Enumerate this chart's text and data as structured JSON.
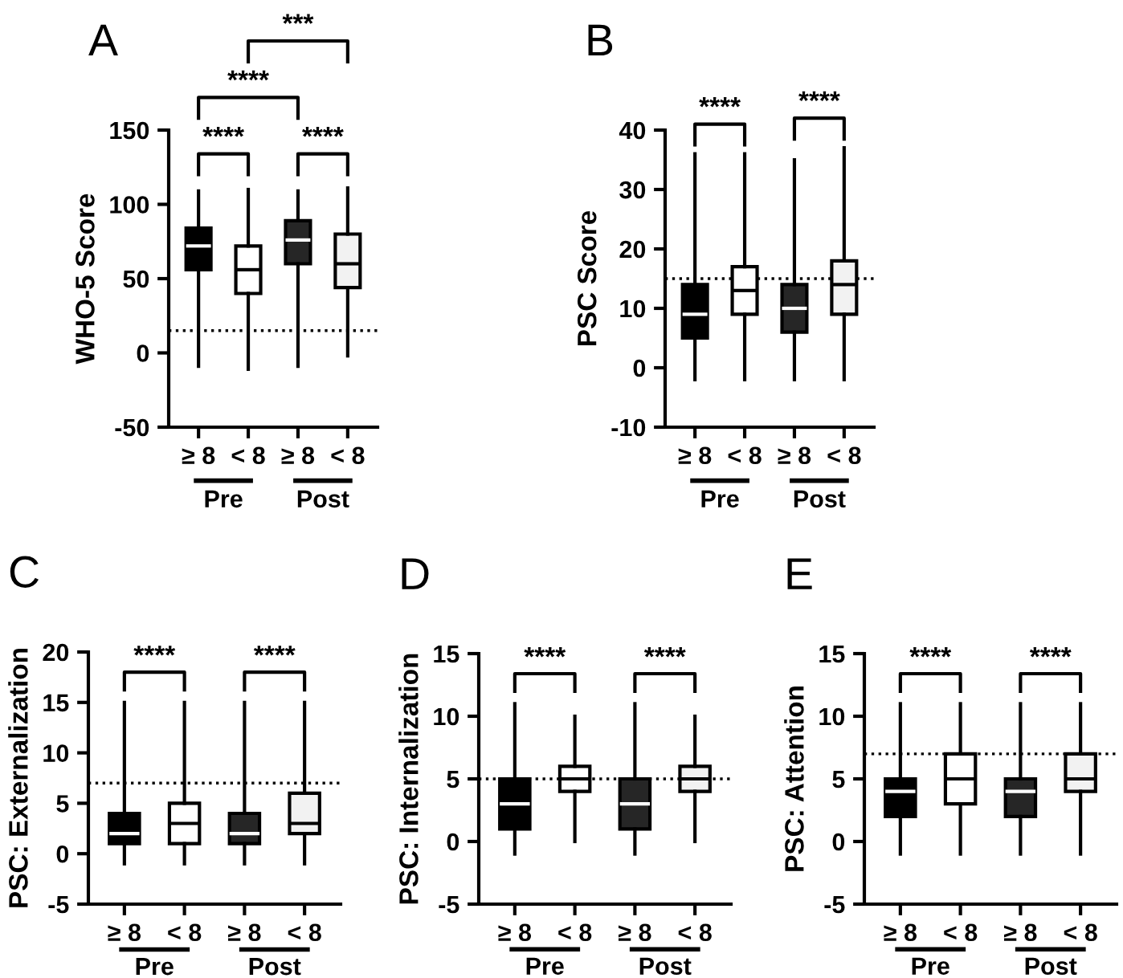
{
  "chart_data": [
    {
      "type": "box",
      "title": "A",
      "ylabel": "WHO-5 Score",
      "categories": [
        "≥ 8",
        "< 8",
        "≥ 8",
        "< 8"
      ],
      "colors": [
        "#000000",
        "#ffffff",
        "#262626",
        "#f2f2f2"
      ],
      "boxes": [
        {
          "low": -9,
          "q1": 56,
          "median": 72,
          "q3": 84,
          "high": 109
        },
        {
          "low": -11,
          "q1": 40,
          "median": 56,
          "q3": 72,
          "high": 110
        },
        {
          "low": -9,
          "q1": 60,
          "median": 76,
          "q3": 89,
          "high": 109
        },
        {
          "low": -2,
          "q1": 44,
          "median": 60,
          "q3": 80,
          "high": 111
        }
      ],
      "ylim": [
        -50,
        150
      ],
      "yticks": [
        -50,
        0,
        50,
        100,
        150
      ],
      "ref_lines": [
        {
          "axis": "y",
          "value": 15,
          "line_style": "dotted"
        }
      ],
      "annotations": [
        "****",
        "****",
        "****",
        "***",
        "Pre",
        "Post"
      ]
    },
    {
      "type": "box",
      "title": "B",
      "ylabel": "PSC Score",
      "categories": [
        "≥ 8",
        "< 8",
        "≥ 8",
        "< 8"
      ],
      "colors": [
        "#000000",
        "#ffffff",
        "#262626",
        "#f2f2f2"
      ],
      "boxes": [
        {
          "low": -2,
          "q1": 5,
          "median": 9,
          "q3": 14,
          "high": 36
        },
        {
          "low": -2,
          "q1": 9,
          "median": 13,
          "q3": 17,
          "high": 36
        },
        {
          "low": -2,
          "q1": 6,
          "median": 10,
          "q3": 14,
          "high": 35
        },
        {
          "low": -2,
          "q1": 9,
          "median": 14,
          "q3": 18,
          "high": 37
        }
      ],
      "ylim": [
        -10,
        40
      ],
      "yticks": [
        -10,
        0,
        10,
        20,
        30,
        40
      ],
      "ref_lines": [
        {
          "axis": "y",
          "value": 15,
          "line_style": "dotted"
        }
      ],
      "annotations": [
        "****",
        "****",
        "Pre",
        "Post"
      ]
    },
    {
      "type": "box",
      "title": "C",
      "ylabel": "PSC: Externalization",
      "categories": [
        "≥ 8",
        "< 8",
        "≥ 8",
        "< 8"
      ],
      "colors": [
        "#000000",
        "#ffffff",
        "#262626",
        "#f2f2f2"
      ],
      "boxes": [
        {
          "low": -1,
          "q1": 1,
          "median": 2,
          "q3": 4,
          "high": 15
        },
        {
          "low": -1,
          "q1": 1,
          "median": 3,
          "q3": 5,
          "high": 15
        },
        {
          "low": -1,
          "q1": 1,
          "median": 2,
          "q3": 4,
          "high": 15
        },
        {
          "low": -1,
          "q1": 2,
          "median": 3,
          "q3": 6,
          "high": 15
        }
      ],
      "ylim": [
        -5,
        20
      ],
      "yticks": [
        -5,
        0,
        5,
        10,
        15,
        20
      ],
      "ref_lines": [
        {
          "axis": "y",
          "value": 7,
          "line_style": "dotted"
        }
      ],
      "annotations": [
        "****",
        "****",
        "Pre",
        "Post"
      ]
    },
    {
      "type": "box",
      "title": "D",
      "ylabel": "PSC: Internalization",
      "categories": [
        "≥ 8",
        "< 8",
        "≥ 8",
        "< 8"
      ],
      "colors": [
        "#000000",
        "#ffffff",
        "#262626",
        "#f2f2f2"
      ],
      "boxes": [
        {
          "low": -1,
          "q1": 1,
          "median": 3,
          "q3": 5,
          "high": 11
        },
        {
          "low": 0,
          "q1": 4,
          "median": 5,
          "q3": 6,
          "high": 10
        },
        {
          "low": -1,
          "q1": 1,
          "median": 3,
          "q3": 5,
          "high": 11
        },
        {
          "low": 0,
          "q1": 4,
          "median": 5,
          "q3": 6,
          "high": 10
        }
      ],
      "ylim": [
        -5,
        15
      ],
      "yticks": [
        -5,
        0,
        5,
        10,
        15
      ],
      "ref_lines": [
        {
          "axis": "y",
          "value": 5,
          "line_style": "dotted"
        }
      ],
      "annotations": [
        "****",
        "****",
        "Pre",
        "Post"
      ]
    },
    {
      "type": "box",
      "title": "E",
      "ylabel": "PSC: Attention",
      "categories": [
        "≥ 8",
        "< 8",
        "≥ 8",
        "< 8"
      ],
      "colors": [
        "#000000",
        "#ffffff",
        "#262626",
        "#f2f2f2"
      ],
      "boxes": [
        {
          "low": -1,
          "q1": 2,
          "median": 4,
          "q3": 5,
          "high": 11
        },
        {
          "low": -1,
          "q1": 3,
          "median": 5,
          "q3": 7,
          "high": 11
        },
        {
          "low": -1,
          "q1": 2,
          "median": 4,
          "q3": 5,
          "high": 11
        },
        {
          "low": -1,
          "q1": 4,
          "median": 5,
          "q3": 7,
          "high": 11
        }
      ],
      "ylim": [
        -5,
        15
      ],
      "yticks": [
        -5,
        0,
        5,
        10,
        15
      ],
      "ref_lines": [
        {
          "axis": "y",
          "value": 7,
          "line_style": "dotted"
        }
      ],
      "annotations": [
        "****",
        "****",
        "Pre",
        "Post"
      ]
    }
  ]
}
